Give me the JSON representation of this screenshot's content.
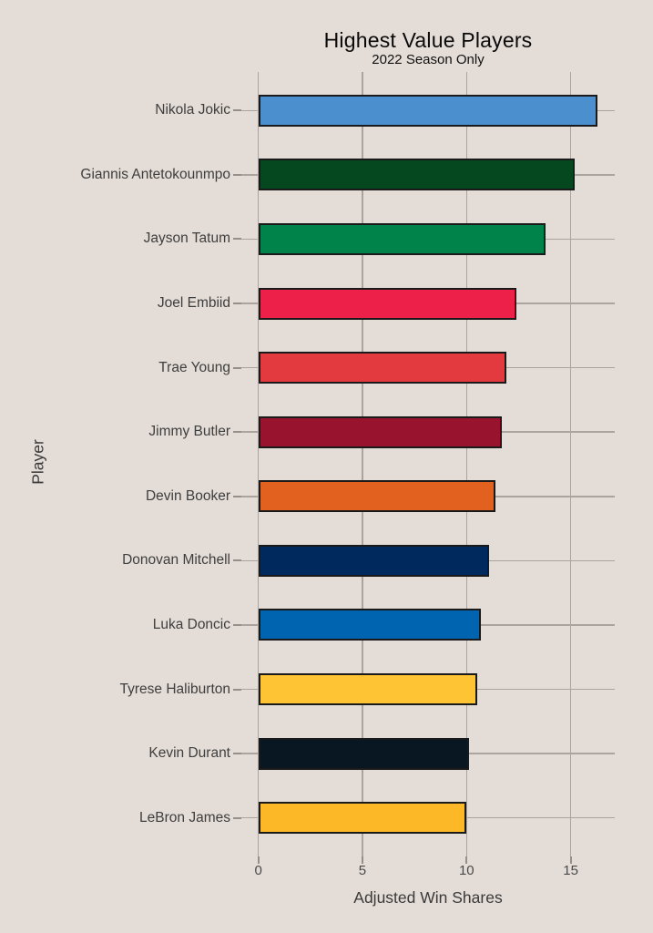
{
  "title": "Highest Value Players",
  "subtitle": "2022 Season Only",
  "colors": {
    "background": "#E4DCD6",
    "gridline": "#ABA49E",
    "tick_mark": "#948F8A",
    "bar_border": "#1A1A1A",
    "title_text": "#0A0A0A",
    "axis_title_text": "#3A3A3A",
    "category_label_text": "#3E3E3E",
    "tick_label_text": "#4A4A4A"
  },
  "chart_data": {
    "type": "bar",
    "orientation": "horizontal",
    "title": "Highest Value Players",
    "subtitle": "2022 Season Only",
    "xlabel": "Adjusted Win Shares",
    "ylabel": "Player",
    "categories": [
      "Nikola Jokic",
      "Giannis Antetokounmpo",
      "Jayson Tatum",
      "Joel Embiid",
      "Trae Young",
      "Jimmy Butler",
      "Devin Booker",
      "Donovan Mitchell",
      "Luka Doncic",
      "Tyrese Haliburton",
      "Kevin Durant",
      "LeBron James"
    ],
    "values": [
      16.3,
      15.2,
      13.8,
      12.4,
      11.9,
      11.7,
      11.4,
      11.1,
      10.7,
      10.5,
      10.1,
      10.0
    ],
    "bar_colors": [
      "#4B8FCE",
      "#05471E",
      "#00834A",
      "#EC2049",
      "#E23A3E",
      "#98142E",
      "#E2611F",
      "#002A5E",
      "#0064B0",
      "#FEC433",
      "#081722",
      "#FDB827"
    ],
    "x_ticks": [
      0,
      5,
      10,
      15
    ],
    "x_tick_labels": [
      "0",
      "5",
      "10",
      "15"
    ],
    "xlim": [
      -0.815,
      17.115
    ],
    "grid": true,
    "legend": false
  }
}
